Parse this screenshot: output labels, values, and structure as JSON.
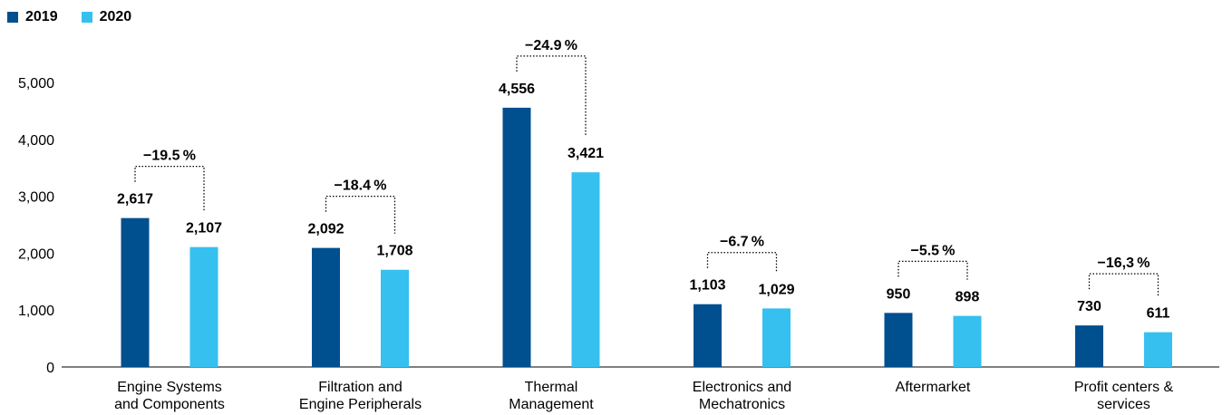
{
  "chart_data": {
    "type": "bar",
    "title": "",
    "xlabel": "",
    "ylabel": "",
    "ylim": [
      0,
      5000
    ],
    "yticks": [
      "0",
      "1,000",
      "2,000",
      "3,000",
      "4,000",
      "5,000"
    ],
    "grid": false,
    "legend_position": "top-left",
    "categories": [
      [
        "Engine Systems",
        "and Components"
      ],
      [
        "Filtration and",
        "Engine Peripherals"
      ],
      [
        "Thermal",
        "Management"
      ],
      [
        "Electronics and",
        "Mechatronics"
      ],
      [
        "Aftermarket"
      ],
      [
        "Profit centers &",
        "services"
      ]
    ],
    "series": [
      {
        "name": "2019",
        "color": "#004f8f",
        "values": [
          2617,
          2092,
          4556,
          1103,
          950,
          730
        ],
        "labels": [
          "2,617",
          "2,092",
          "4,556",
          "1,103",
          "950",
          "730"
        ]
      },
      {
        "name": "2020",
        "color": "#35c0f0",
        "values": [
          2107,
          1708,
          3421,
          1029,
          898,
          611
        ],
        "labels": [
          "2,107",
          "1,708",
          "3,421",
          "1,029",
          "898",
          "611"
        ]
      }
    ],
    "changes": [
      "−19.5 %",
      "−18.4 %",
      "−24.9 %",
      "−6.7 %",
      "−5.5 %",
      "−16,3 %"
    ]
  }
}
